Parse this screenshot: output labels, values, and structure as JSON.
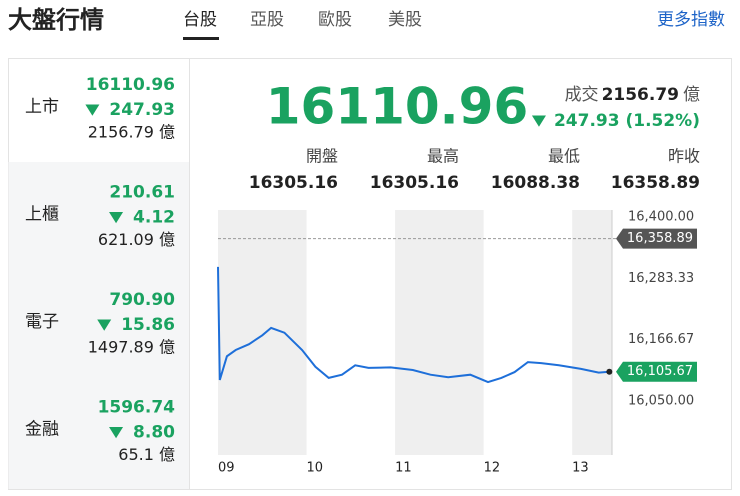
{
  "header": {
    "title": "大盤行情",
    "tabs": [
      "台股",
      "亞股",
      "歐股",
      "美股"
    ],
    "more": "更多指數"
  },
  "sidebar": [
    {
      "label": "上市",
      "price": "16110.96",
      "change": "247.93",
      "volume": "2156.79 億"
    },
    {
      "label": "上櫃",
      "price": "210.61",
      "change": "4.12",
      "volume": "621.09 億"
    },
    {
      "label": "電子",
      "price": "790.90",
      "change": "15.86",
      "volume": "1497.89 億"
    },
    {
      "label": "金融",
      "price": "1596.74",
      "change": "8.80",
      "volume": "65.1 億"
    }
  ],
  "main": {
    "price": "16110.96",
    "volume_label": "成交",
    "volume": "2156.79",
    "volume_unit": "億",
    "change": "247.93 (1.52%)",
    "stats": [
      {
        "label": "開盤",
        "value": "16305.16"
      },
      {
        "label": "最高",
        "value": "16305.16"
      },
      {
        "label": "最低",
        "value": "16088.38"
      },
      {
        "label": "昨收",
        "value": "16358.89"
      }
    ]
  },
  "chart_data": {
    "type": "line",
    "x": [
      9.0,
      9.02,
      9.1,
      9.2,
      9.35,
      9.5,
      9.6,
      9.75,
      9.95,
      10.1,
      10.25,
      10.4,
      10.55,
      10.7,
      10.95,
      11.2,
      11.4,
      11.6,
      11.85,
      12.05,
      12.2,
      12.35,
      12.5,
      12.65,
      12.85,
      13.1,
      13.3,
      13.42
    ],
    "series": [
      {
        "color": "#1e6fd9",
        "values": [
          16305.16,
          16090,
          16135,
          16147,
          16158,
          16175,
          16189,
          16180,
          16147,
          16115,
          16094,
          16100,
          16118,
          16113,
          16114,
          16109,
          16100,
          16095,
          16100,
          16086,
          16094,
          16105,
          16124,
          16122,
          16118,
          16111,
          16104,
          16105.67
        ]
      }
    ],
    "xlim": [
      9,
      13.45
    ],
    "xticks": [
      {
        "value": 9,
        "label": "09"
      },
      {
        "value": 10,
        "label": "10"
      },
      {
        "value": 11,
        "label": "11"
      },
      {
        "value": 12,
        "label": "12"
      },
      {
        "value": 13,
        "label": "13"
      }
    ],
    "ylim": [
      16050,
      16400
    ],
    "yticks": [
      {
        "value": 16050,
        "label": "16,050.00"
      },
      {
        "value": 16166.67,
        "label": "16,166.67"
      },
      {
        "value": 16283.33,
        "label": "16,283.33"
      },
      {
        "value": 16400,
        "label": "16,400.00"
      }
    ],
    "ref_lines": [
      {
        "value": 16358.89,
        "label": "16,358.89",
        "color": "#555555"
      },
      {
        "value": 16105.67,
        "label": "16,105.67",
        "color": "#1aa260"
      }
    ]
  }
}
